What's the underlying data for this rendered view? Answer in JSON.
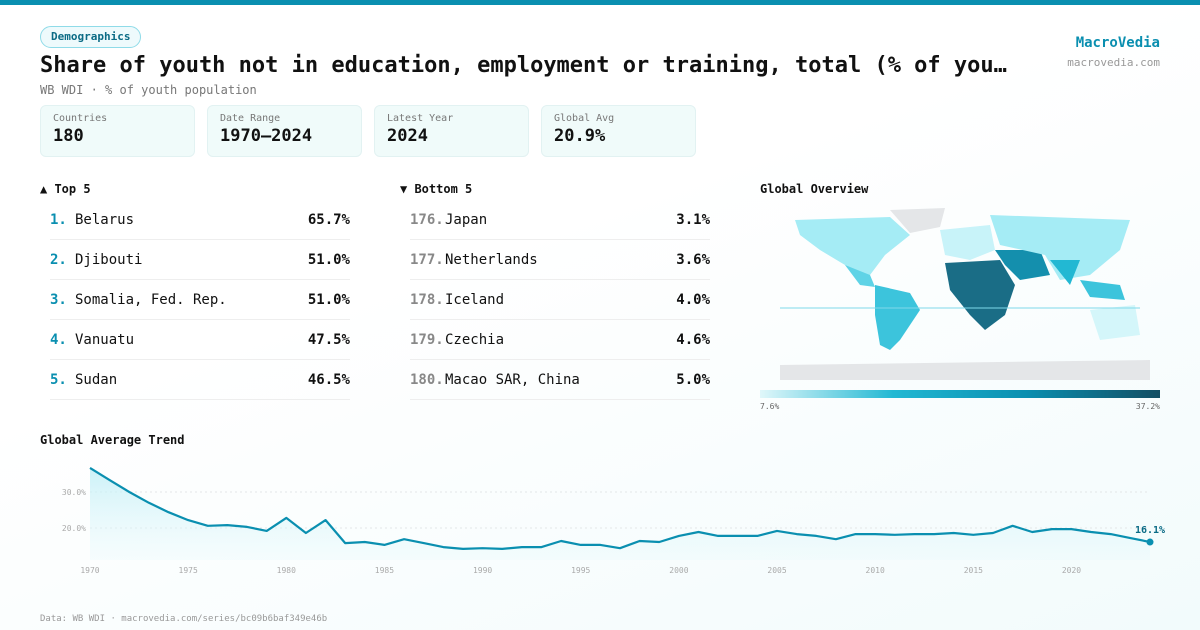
{
  "badge": "Demographics",
  "title": "Share of youth not in education, employment or training, total (% of youth population)",
  "subtitle": "WB WDI · % of youth population",
  "brand": {
    "name": "MacroVedia",
    "url": "macrovedia.com"
  },
  "stats": [
    {
      "label": "Countries",
      "value": "180"
    },
    {
      "label": "Date Range",
      "value": "1970–2024"
    },
    {
      "label": "Latest Year",
      "value": "2024"
    },
    {
      "label": "Global Avg",
      "value": "20.9%"
    }
  ],
  "top": {
    "title": "▲ Top 5",
    "items": [
      {
        "rank": "1.",
        "name": "Belarus",
        "value": "65.7%"
      },
      {
        "rank": "2.",
        "name": "Djibouti",
        "value": "51.0%"
      },
      {
        "rank": "3.",
        "name": "Somalia, Fed. Rep.",
        "value": "51.0%"
      },
      {
        "rank": "4.",
        "name": "Vanuatu",
        "value": "47.5%"
      },
      {
        "rank": "5.",
        "name": "Sudan",
        "value": "46.5%"
      }
    ]
  },
  "bottom": {
    "title": "▼ Bottom 5",
    "items": [
      {
        "rank": "176.",
        "name": "Japan",
        "value": "3.1%"
      },
      {
        "rank": "177.",
        "name": "Netherlands",
        "value": "3.6%"
      },
      {
        "rank": "178.",
        "name": "Iceland",
        "value": "4.0%"
      },
      {
        "rank": "179.",
        "name": "Czechia",
        "value": "4.6%"
      },
      {
        "rank": "180.",
        "name": "Macao SAR, China",
        "value": "5.0%"
      }
    ]
  },
  "map": {
    "title": "Global Overview",
    "min": "7.6%",
    "max": "37.2%",
    "colors": [
      "#e0f7fa",
      "#22b8d3",
      "#0a8fb0",
      "#134e63"
    ]
  },
  "footer": "Data: WB WDI · macrovedia.com/series/bc09b6baf349e46b",
  "chart_data": {
    "type": "line",
    "title": "Global Average Trend",
    "x": [
      1970,
      1971,
      1972,
      1973,
      1974,
      1975,
      1976,
      1977,
      1978,
      1979,
      1980,
      1981,
      1982,
      1983,
      1984,
      1985,
      1986,
      1987,
      1988,
      1989,
      1990,
      1991,
      1992,
      1993,
      1994,
      1995,
      1996,
      1997,
      1998,
      1999,
      2000,
      2001,
      2002,
      2003,
      2004,
      2005,
      2006,
      2007,
      2008,
      2009,
      2010,
      2011,
      2012,
      2013,
      2014,
      2015,
      2016,
      2017,
      2018,
      2019,
      2020,
      2021,
      2022,
      2023,
      2024
    ],
    "y": [
      36.7,
      33.3,
      30.0,
      27.0,
      24.4,
      22.2,
      20.6,
      20.8,
      20.3,
      19.2,
      22.8,
      18.6,
      22.2,
      15.8,
      16.1,
      15.3,
      16.9,
      15.8,
      14.7,
      14.2,
      14.4,
      14.2,
      14.7,
      14.7,
      16.4,
      15.3,
      15.3,
      14.4,
      16.4,
      16.1,
      17.8,
      18.9,
      17.8,
      17.8,
      17.8,
      19.2,
      18.3,
      17.8,
      16.9,
      18.3,
      18.3,
      18.1,
      18.3,
      18.3,
      18.6,
      18.1,
      18.6,
      20.6,
      18.9,
      19.7,
      19.7,
      18.9,
      18.3,
      17.2,
      16.1
    ],
    "yticks": [
      "20.0%",
      "30.0%"
    ],
    "ytick_values": [
      20,
      30
    ],
    "xticks": [
      "1970",
      "1975",
      "1980",
      "1985",
      "1990",
      "1995",
      "2000",
      "2005",
      "2010",
      "2015",
      "2020"
    ],
    "last_label": "16.1%",
    "color": "#0a8fb0",
    "grid": true
  }
}
